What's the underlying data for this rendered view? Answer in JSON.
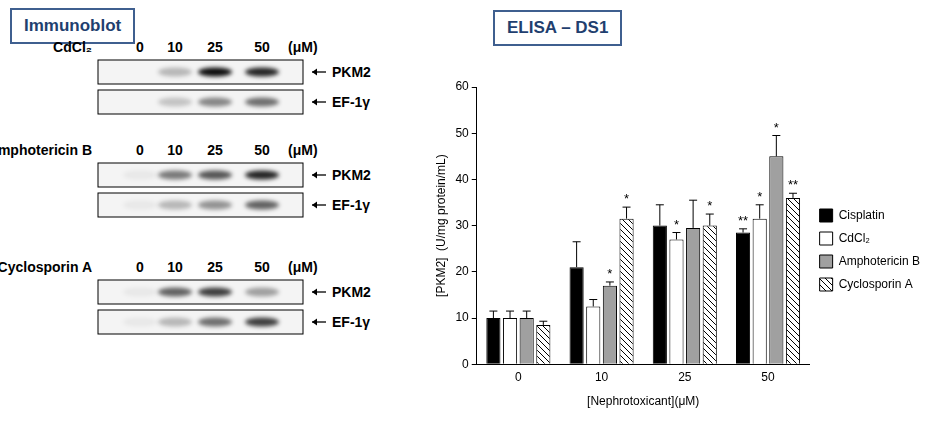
{
  "immunoblot": {
    "title": "Immunoblot",
    "blots": [
      {
        "treatment": "CdCl₂",
        "doses": [
          0,
          10,
          25,
          50
        ],
        "unit": "(μM)",
        "bands": [
          {
            "label": "PKM2",
            "intensities": [
              0,
              0.25,
              0.95,
              0.85
            ]
          },
          {
            "label": "EF-1γ",
            "intensities": [
              0,
              0.2,
              0.45,
              0.55
            ]
          }
        ]
      },
      {
        "treatment": "Amphotericin B",
        "doses": [
          0,
          10,
          25,
          50
        ],
        "unit": "(μM)",
        "bands": [
          {
            "label": "PKM2",
            "intensities": [
              0.05,
              0.5,
              0.65,
              0.85
            ]
          },
          {
            "label": "EF-1γ",
            "intensities": [
              0.05,
              0.25,
              0.4,
              0.6
            ]
          }
        ]
      },
      {
        "treatment": "Cyclosporin A",
        "doses": [
          0,
          10,
          25,
          50
        ],
        "unit": "(μM)",
        "bands": [
          {
            "label": "PKM2",
            "intensities": [
              0.05,
              0.6,
              0.75,
              0.35
            ]
          },
          {
            "label": "EF-1γ",
            "intensities": [
              0.05,
              0.25,
              0.55,
              0.75
            ]
          }
        ]
      }
    ]
  },
  "chart_data": {
    "type": "bar",
    "title": "ELISA – DS1",
    "x_label": "[Nephrotoxicant](μM)",
    "y_label": "[PKM2]  (U/mg protein/mL)",
    "categories": [
      "0",
      "10",
      "25",
      "50"
    ],
    "ylim": [
      0,
      60
    ],
    "yticks": [
      0,
      10,
      20,
      30,
      40,
      50,
      60
    ],
    "grid": false,
    "legend": "right",
    "series": [
      {
        "name": "Cisplatin",
        "color": "#000000",
        "values": [
          10,
          21,
          30,
          28.5
        ],
        "errors": [
          1.5,
          5.5,
          4.5,
          0.8
        ],
        "annotations": [
          null,
          null,
          null,
          "**"
        ]
      },
      {
        "name": "CdCl₂",
        "color": "#ffffff",
        "values": [
          10,
          12.5,
          27,
          31.5
        ],
        "errors": [
          1.5,
          1.5,
          1.5,
          3
        ],
        "annotations": [
          null,
          null,
          "*",
          "*"
        ]
      },
      {
        "name": "Amphotericin B",
        "color": "#a0a0a0",
        "values": [
          10,
          17,
          29.5,
          45
        ],
        "errors": [
          1.5,
          0.8,
          6,
          4.5
        ],
        "annotations": [
          null,
          "*",
          null,
          "*"
        ]
      },
      {
        "name": "Cyclosporin A",
        "color": "#000000",
        "marker": "hatch",
        "values": [
          8.5,
          31.5,
          30,
          36
        ],
        "errors": [
          0.8,
          2.5,
          2.5,
          1
        ],
        "annotations": [
          null,
          "*",
          "*",
          "**"
        ]
      }
    ]
  }
}
